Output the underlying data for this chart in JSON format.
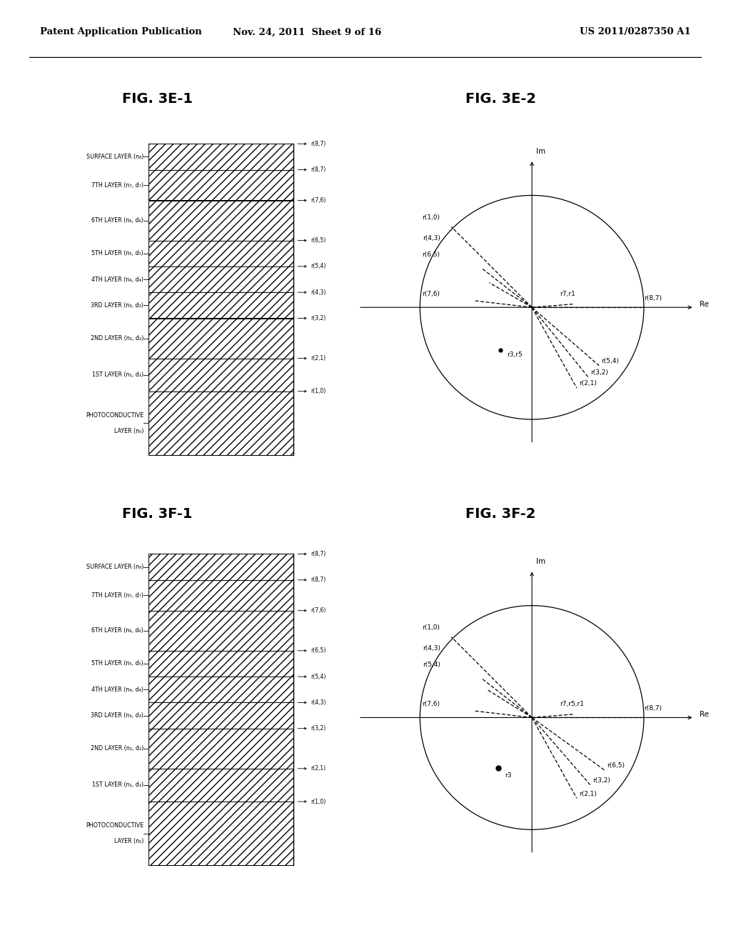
{
  "header_left": "Patent Application Publication",
  "header_mid": "Nov. 24, 2011  Sheet 9 of 16",
  "header_right": "US 2011/0287350 A1",
  "fig_3e1_title": "FIG. 3E-1",
  "fig_3e2_title": "FIG. 3E-2",
  "fig_3f1_title": "FIG. 3F-1",
  "fig_3f2_title": "FIG. 3F-2",
  "layer_names_top_bottom": [
    "SURFACE LAYER (n₈)",
    "7TH LAYER (n₇, d₇)",
    "6TH LAYER (n₆, d₆)",
    "5TH LAYER (n₅, d₅)",
    "4TH LAYER (n₄, d₄)",
    "3RD LAYER (n₃, d₃)",
    "2ND LAYER (n₂, d₂)",
    "1ST LAYER (n₁, d₁)",
    "PHOTOCONDUCTIVE\nLAYER (n₀)"
  ],
  "r_labels_top_bottom": [
    "r(8,7)",
    "r(7,6)",
    "r(6,5)",
    "r(5,4)",
    "r(4,3)",
    "r(3,2)",
    "r(2,1)",
    "r(1,0)"
  ],
  "layer_heights_top_bottom": [
    0.55,
    0.65,
    0.85,
    0.55,
    0.55,
    0.55,
    0.85,
    0.7,
    1.35
  ],
  "background_color": "#ffffff"
}
